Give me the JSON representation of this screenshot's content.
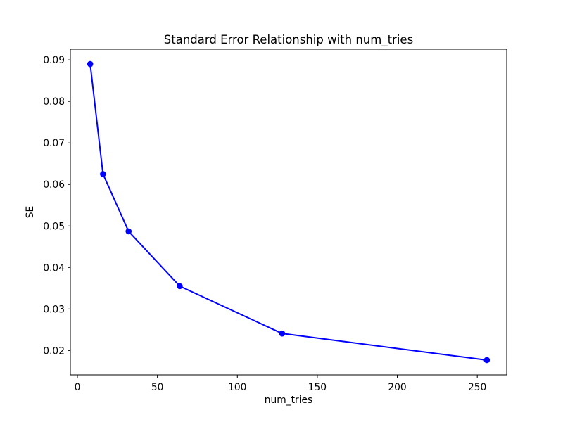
{
  "figure": {
    "background": "#ffffff"
  },
  "chart_data": {
    "type": "line",
    "title": "Standard Error Relationship with num_tries",
    "xlabel": "num_tries",
    "ylabel": "SE",
    "x": [
      8,
      16,
      32,
      64,
      128,
      256
    ],
    "y": [
      0.089,
      0.0625,
      0.0487,
      0.0355,
      0.0241,
      0.0177
    ],
    "x_ticks": [
      0,
      50,
      100,
      150,
      200,
      250
    ],
    "y_ticks": [
      0.02,
      0.03,
      0.04,
      0.05,
      0.06,
      0.07,
      0.08,
      0.09
    ],
    "y_tick_decimals": 2,
    "xlim": [
      -4.4,
      268.4
    ],
    "ylim": [
      0.014135,
      0.092565
    ],
    "line_color": "#0000ff",
    "marker": "circle",
    "marker_color": "#0000ff",
    "grid": false,
    "legend": null
  }
}
